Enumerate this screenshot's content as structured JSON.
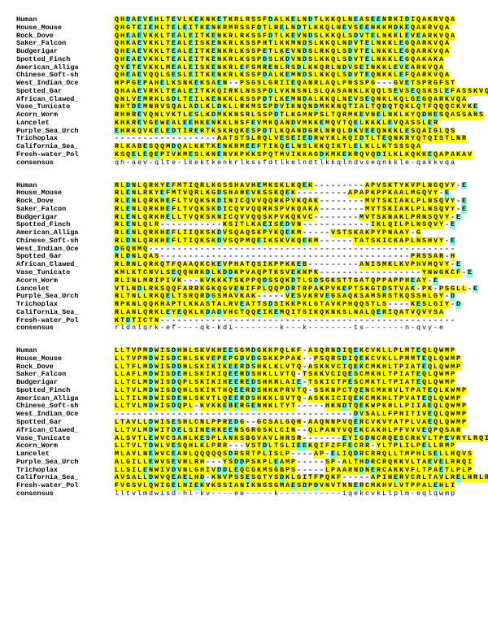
{
  "colors": {
    "none": "#ffffff",
    "yellow": "#ffff00",
    "cyan": "#7fffd4"
  },
  "specialResidues": {
    "cyan": [
      "D",
      "E"
    ]
  },
  "gapChar": "-",
  "blocks": [
    {
      "rows": [
        {
          "label": "Human",
          "seq": "QHDAEVEHLTEVLKEKNKETKRLRSSFDALKELNDTLKKQLNEASEENRKIDIQAKRVQA"
        },
        {
          "label": "House_Mouse",
          "seq": "QHGTEIEHLTELEITKENKRMRSSFDTLRELNDTLKKQLNEVSEENKKMDKEQAKRVQA"
        },
        {
          "label": "Rock_Dove",
          "seq": "QHEAEVKKLTEALEITKENKRLRKSSFDTLKEVNDSLKKQLSDVTELNKKLEVEARKVQA"
        },
        {
          "label": "Saker_Falcon",
          "seq": "QHKAEVKKLTEALEISKENKRLKSSPHTLKKMNDSLKKQLNDVTELNKKLEGQARKVQA"
        },
        {
          "label": "Budgerigar",
          "seq": "QHEAEVKKLTEALEITKENKRLKSSPETLKEVNDSLRKQLSDVTELNKKLEGQARKVQA"
        },
        {
          "label": "Spotted_Finch",
          "seq": "QHEAEVKKLTEALEITKENKRLKSSPDSLKDVNDSLKKQLSDVTELNKKLEGQAKAKA"
        },
        {
          "label": "American_Alliga",
          "seq": "QYETEVKKLMEALEISKENKRLEFSMRENLRSDLKKQRLNDVSEINKKLEVEARKVQA"
        },
        {
          "label": "Chinese_Soft-sh",
          "seq": "QHEAEVQQLSESLEITKENKRLKSSPDALKEMNDSLKKQLSDVTEQNKKLEFQARKVQA"
        },
        {
          "label": "West_Indian_Oce",
          "seq": "HPPGEPAHELKSNKEKSAEN--PSGSLGRIIEQANRLAQLPNSSPG---GVETSPRGFST"
        },
        {
          "label": "Spotted_Gar",
          "seq": "QHAAEVRKLTEALEITKKQIRKLNSSPDLVKNSNLSLQASANKLKQQLSEVSEQSKSLEFASSKVQA"
        },
        {
          "label": "African_Clawed_",
          "seq": "QNLVEMRKLSDLTEILKENKKLKSSPDTLKEMNDALKKQLNEVSEQNKLKQLGEGQARKVQA"
        },
        {
          "label": "Vase_Tunicate",
          "seq": "NHTDEMNRVSQALADLKLDKLLRKMSSPDVIKNQNDMKKNQTIALTQDQTQKLQTFQQQCKVKE"
        },
        {
          "label": "Acorn_Worm",
          "seq": "RHHREVQNLVKTLESLKDMKKNSRLSSPDTLKGMNPSLTQRMKEVNELNKLKYQDHESQASSANS"
        },
        {
          "label": "Lancelet",
          "seq": "KHKREVGEWEALEEHKENKKLNSFEVMKQANDVMKKEMQVTQELKKKLEVQASSLER"
        },
        {
          "label": "Purple_Sea_Urch",
          "seq": "EHRKQVKELEDTIRERTKSKRQKESPDTLKQANDGRLNRQLDKVEEQNKKLESQAIGLQS"
        },
        {
          "label": "Trichoplax",
          "seq": "------------------AATSTSLRQLVESEIEDRWYKLKQIDTLTEQNKRYQTQISTLNR"
        },
        {
          "label": "California_Sea_",
          "seq": "RLKABESQQMDQALKKTKENKRMEEFTIKQELNSLKKQIKTLELKLLKTSSSQA"
        },
        {
          "label": "Fresh-water_Pol",
          "seq": "KSQELEQEPIVKMESLKNENVKPKKSPQTMVIKKAGDKMKEKRQVQDILKLKQKKEQAPAKAV"
        },
        {
          "label": "consensus",
          "seq": "qh-aev-qlte-lkektkenkrlkssfdtlkelndtlkkqlndvseqnkkle-qakkvqa",
          "isConsensus": true
        }
      ]
    },
    {
      "rows": [
        {
          "label": "Human",
          "seq": "RLDNLQRKYEFMTIQRLKGSSHAVHEMKSKLKQEK---------APVSKTYKVPLNGQVY-E"
        },
        {
          "label": "House_Mouse",
          "seq": "RLENLRKYEFMTVQRLKGDSHAHEVKSSKQEK---------APAPKPPKAALMGQVY-E"
        },
        {
          "label": "Rock_Dove",
          "seq": "RLENLQRKHEFLTVQKSKDINICQVVQQRKPVKQAK--------MVTSKIAKLPLNSQVY-E"
        },
        {
          "label": "Saker_Falcon",
          "seq": "RLENLQRKHEFLTVQKSKDICQVVQQRKSPVKQAKA--------MVTSKIAKLPLNSQVY-E"
        },
        {
          "label": "Budgerigar",
          "seq": "RLENLQRKHELLTVQKSKNICQVVQQSKPVKQKVC--------MVTSKNAKLPRNSQVY-E"
        },
        {
          "label": "Spotted_Finch",
          "seq": "RLENLQLR-----------KSITLKAEISEDVN------------IKLQILPLNSQVY-E"
        },
        {
          "label": "American_Alliga",
          "seq": "RLENLQRKHEFLIIQKSKDVSQAQSKPYKQEKM-----VSTSKAKPYPNAAY-G"
        },
        {
          "label": "Chinese_Soft-sh",
          "seq": "RLDNLQRKHEFLTIQKSKDVSQPMQEIKSKVKQEKM------TATSKICKAPLNSHVY-E"
        },
        {
          "label": "West_Indian_Oce",
          "seq": "DGQNMQ------------------------------------------------------"
        },
        {
          "label": "Spotted_Gar",
          "seq": "RLDNLQAS--------------------------------------------PRSSAR-H"
        },
        {
          "label": "African_Clawed_",
          "seq": "RLRNLQRKQTFQAAQKCKEVPHATQSIKPPKKEB---------ANISMKLKVPHVMQVY-E"
        },
        {
          "label": "Vase_Tunicate",
          "seq": "KMLKTCNVLSEQQNRKDLKDDKPVAQPTKSVEKNPK------------------YNWGKCF-E"
        },
        {
          "label": "Acorn_Worm",
          "seq": "RLINLMRIPIVK---KVKKKTSKPPQDSSQKDTLSDSGKSTTGATQPPAPPHEAY-E"
        },
        {
          "label": "Lancelet",
          "seq": "VTLNDLRKSQQFARRKGKQGVENIFPLQQPDRTRPAKPVKEPTSKGTDSTVAK-PK-PSGLL-E"
        },
        {
          "label": "Purple_Sea_Urch",
          "seq": "RLTNLLRKQELTSRQRDGSMAVKAK-----VESVKRVEGSAQKSAMSRSTKQSSHLGY-D"
        },
        {
          "label": "Trichoplax",
          "seq": "RPKNLQQKHAPTLKKASTALRVEATTSDSIKKPKLGTAVKPHQQSTLS----KESLGIY-D"
        },
        {
          "label": "California_Sea_",
          "seq": "RLANLQRKLEYEQKLKDADVHCTQQEIKEMQITSIKQKNKSLNALQERIQATVQVYSA"
        },
        {
          "label": "Fresh-water_Pol",
          "seq": "KTDTICTN----------------------------------------------------"
        },
        {
          "label": "consensus",
          "seq": "rldnlqrk-ef----qk-kdi--------k---k--------ts-------n-qvy-e",
          "isConsensus": true
        }
      ]
    },
    {
      "rows": [
        {
          "label": "Human",
          "seq": "LLTVPMDWISDHHLSKVKHEESGMDGKKPQLKF-ASQRNDIQEKCVKLLPLMTEQLQWMP"
        },
        {
          "label": "House_Mouse",
          "seq": "LLTVPMDWISDCHLSKVEPEPGDVDGGKKPPAK--PSQRSDIQEKCVKLLPMMTEQLQWMP"
        },
        {
          "label": "Rock_Dove",
          "seq": "LLTFLMDWISDDHLSKIKIKEERDSHKLKLVTQ-ASKKVCIQEKCMKHLTPIATEQLQWMP"
        },
        {
          "label": "Saker_Falcon",
          "seq": "LLAFLMDWISDEHLSKIKIQEERDSHKLLVTQ-TSKKVCIQESCMKHLTPIATEQLQWMP"
        },
        {
          "label": "Budgerigar",
          "seq": "LLTCLMDWISDQPLSKIKIHEEREDSHKRLAIE-TSKICTPESCMKTLTPIATEQLQWMP"
        },
        {
          "label": "Spotted_Finch",
          "seq": "LLTVLMDWISDQHLSKIKTHQEERDSHKKPRVTQ-SSKNPCTQENCMKHVLTPATEQLKWMP"
        },
        {
          "label": "American_Alliga",
          "seq": "LLTILMDWISDEHLSKVTLQEERDSHKKLSVTQ-ASKKICIQEKCMKHLTPVATEQLQWMP"
        },
        {
          "label": "Chinese_Soft-sh",
          "seq": "LLTVLMDWISDQPL-KVKKEBERGENHKLTYT-----HKNDTQEKWPKHLLPIIAEQLQWMP"
        },
        {
          "label": "West_Indian_Oce",
          "seq": "------------------------------------------DVSALLFPHITIVEQLQWMP"
        },
        {
          "label": "Spotted_Gar",
          "seq": "LTAVLLDWISESHLCNLPPREDG--GCSALGQH-AAQNNPVQERCVKVYATPLVAEQLQWMP"
        },
        {
          "label": "African_Clawed_",
          "seq": "LLTVLMDWITDELSINERKEENSGRGSKLCIN--QLPANYVQEKCAKHLPFVVVEQPQSAR"
        },
        {
          "label": "Vase_Tunicate",
          "seq": "ALSVTLEWVCSAHLKESPLANKSBGVAVLHRSR-------EYIGDNCRQESCRKVLTPEVRYLRQI"
        },
        {
          "label": "Acorn_Worm",
          "seq": "LLTVLTDWLVESQHLKLPRR---VSTDLTSLIEEKQIFZFFECRR-YLTPLILPELLRMP"
        },
        {
          "label": "Lancelet",
          "seq": "MLAVLNEWVCEANLQQQQQSDRSRTPLISLP----AP-ELIQDRCRRQLLTMPHLSELLHQVS"
        },
        {
          "label": "Purple_Sea_Urch",
          "seq": "ALGILLEWVSEVHLRH---YSDDPSKPLEAMP-----SP-ALTHDRCRQKKVLTAEVELRRQI"
        },
        {
          "label": "Trichoplax",
          "seq": "LLSILENWIVDVNLGHIVDDLEQCGKMSGBPS-----LPAARNDNERCAKKVFLTPAETLPLP"
        },
        {
          "label": "California_Sea_",
          "seq": "AVSALLDWVQEAELHD-KNVPSSESGTYSDKLGITFPQKF-----APIHERVCRLTAVLRELHRLR"
        },
        {
          "label": "Fresh-water_Pol",
          "seq": "FVGSVLQWIGELHIEKVKSSIANIKNGSGMAESDPDVNVTKNERCMKHVLVTPPALEHLI"
        },
        {
          "label": "consensus",
          "seq": "lltvlmdwisd-hl-kv----ee-----k-----------iqekcvkLlplm-eqlqwmp",
          "isConsensus": true
        }
      ]
    }
  ]
}
